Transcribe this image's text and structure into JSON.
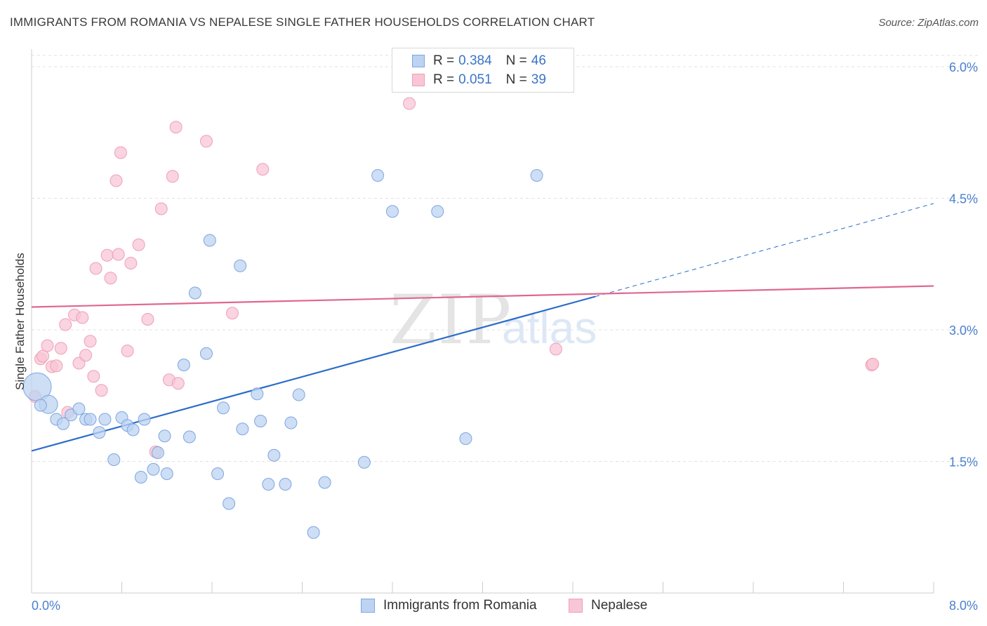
{
  "header": {
    "title": "IMMIGRANTS FROM ROMANIA VS NEPALESE SINGLE FATHER HOUSEHOLDS CORRELATION CHART",
    "source": "Source: ZipAtlas.com"
  },
  "legend_top": {
    "rows": [
      {
        "r_label": "R =",
        "r_value": "0.384",
        "n_label": "N =",
        "n_value": "46"
      },
      {
        "r_label": "R =",
        "r_value": "0.051",
        "n_label": "N =",
        "n_value": "39"
      }
    ]
  },
  "watermark": {
    "zip": "ZIP",
    "atlas": "atlas"
  },
  "bottom_legend": [
    "Immigrants from Romania",
    "Nepalese"
  ],
  "colors": {
    "romania_fill": "#bcd3f2",
    "romania_stroke": "#7ea6e0",
    "romania_line": "#2b6cc9",
    "nepalese_fill": "#f8c6d5",
    "nepalese_stroke": "#eea0b8",
    "nepalese_line": "#e0678f",
    "tick_text": "#4a7fd0",
    "grid": "#e2e2e2"
  },
  "chart_data": {
    "type": "scatter",
    "title": "IMMIGRANTS FROM ROMANIA VS NEPALESE SINGLE FATHER HOUSEHOLDS CORRELATION CHART",
    "xlabel": "",
    "ylabel": "Single Father Households",
    "xlim": [
      0,
      8
    ],
    "ylim": [
      0,
      6.2
    ],
    "x_tick_labels": [
      "0.0%",
      "8.0%"
    ],
    "y_ticks": [
      1.5,
      3.0,
      4.5,
      6.0
    ],
    "y_tick_labels": [
      "1.5%",
      "3.0%",
      "4.5%",
      "6.0%"
    ],
    "grid": "horizontal dashed",
    "legend_position": "top-center",
    "series": [
      {
        "name": "Immigrants from Romania",
        "r": 0.384,
        "n": 46,
        "trend": {
          "x0": 0.0,
          "y0": 1.62,
          "x1": 5.0,
          "y1": 3.38,
          "dashed_to": {
            "x": 8.0,
            "y": 4.44
          }
        },
        "points": [
          {
            "x": 0.05,
            "y": 2.35,
            "s": 3
          },
          {
            "x": 0.15,
            "y": 2.15,
            "s": 2
          },
          {
            "x": 0.22,
            "y": 1.98,
            "s": 1
          },
          {
            "x": 0.28,
            "y": 1.93,
            "s": 1
          },
          {
            "x": 0.35,
            "y": 2.03,
            "s": 1
          },
          {
            "x": 0.42,
            "y": 2.1,
            "s": 1
          },
          {
            "x": 0.48,
            "y": 1.98,
            "s": 1
          },
          {
            "x": 0.52,
            "y": 1.98,
            "s": 1
          },
          {
            "x": 0.6,
            "y": 1.83,
            "s": 1
          },
          {
            "x": 0.65,
            "y": 1.98,
            "s": 1
          },
          {
            "x": 0.73,
            "y": 1.52,
            "s": 1
          },
          {
            "x": 0.8,
            "y": 2.0,
            "s": 1
          },
          {
            "x": 0.85,
            "y": 1.91,
            "s": 1
          },
          {
            "x": 0.9,
            "y": 1.86,
            "s": 1
          },
          {
            "x": 0.97,
            "y": 1.32,
            "s": 1
          },
          {
            "x": 1.0,
            "y": 1.98,
            "s": 1
          },
          {
            "x": 1.08,
            "y": 1.41,
            "s": 1
          },
          {
            "x": 1.12,
            "y": 1.6,
            "s": 1
          },
          {
            "x": 1.18,
            "y": 1.79,
            "s": 1
          },
          {
            "x": 1.2,
            "y": 1.36,
            "s": 1
          },
          {
            "x": 1.35,
            "y": 2.6,
            "s": 1
          },
          {
            "x": 1.4,
            "y": 1.78,
            "s": 1
          },
          {
            "x": 1.45,
            "y": 3.42,
            "s": 1
          },
          {
            "x": 1.55,
            "y": 2.73,
            "s": 1
          },
          {
            "x": 1.58,
            "y": 4.02,
            "s": 1
          },
          {
            "x": 1.65,
            "y": 1.36,
            "s": 1
          },
          {
            "x": 1.7,
            "y": 2.11,
            "s": 1
          },
          {
            "x": 1.75,
            "y": 1.02,
            "s": 1
          },
          {
            "x": 1.85,
            "y": 3.73,
            "s": 1
          },
          {
            "x": 1.87,
            "y": 1.87,
            "s": 1
          },
          {
            "x": 2.0,
            "y": 2.27,
            "s": 1
          },
          {
            "x": 2.03,
            "y": 1.96,
            "s": 1
          },
          {
            "x": 2.1,
            "y": 1.24,
            "s": 1
          },
          {
            "x": 2.15,
            "y": 1.57,
            "s": 1
          },
          {
            "x": 2.25,
            "y": 1.24,
            "s": 1
          },
          {
            "x": 2.3,
            "y": 1.94,
            "s": 1
          },
          {
            "x": 2.37,
            "y": 2.26,
            "s": 1
          },
          {
            "x": 2.5,
            "y": 0.69,
            "s": 1
          },
          {
            "x": 2.6,
            "y": 1.26,
            "s": 1
          },
          {
            "x": 2.95,
            "y": 1.49,
            "s": 1
          },
          {
            "x": 3.07,
            "y": 4.76,
            "s": 1
          },
          {
            "x": 3.2,
            "y": 4.35,
            "s": 1
          },
          {
            "x": 3.6,
            "y": 4.35,
            "s": 1
          },
          {
            "x": 3.85,
            "y": 1.76,
            "s": 1
          },
          {
            "x": 4.48,
            "y": 4.76,
            "s": 1
          },
          {
            "x": 0.08,
            "y": 2.14,
            "s": 1
          }
        ]
      },
      {
        "name": "Nepalese",
        "r": 0.051,
        "n": 39,
        "trend": {
          "x0": 0.0,
          "y0": 3.26,
          "x1": 8.0,
          "y1": 3.5
        },
        "points": [
          {
            "x": 0.03,
            "y": 2.24,
            "s": 1
          },
          {
            "x": 0.08,
            "y": 2.67,
            "s": 1
          },
          {
            "x": 0.1,
            "y": 2.7,
            "s": 1
          },
          {
            "x": 0.14,
            "y": 2.82,
            "s": 1
          },
          {
            "x": 0.18,
            "y": 2.58,
            "s": 1
          },
          {
            "x": 0.22,
            "y": 2.59,
            "s": 1
          },
          {
            "x": 0.26,
            "y": 2.79,
            "s": 1
          },
          {
            "x": 0.3,
            "y": 3.06,
            "s": 1
          },
          {
            "x": 0.32,
            "y": 2.06,
            "s": 1
          },
          {
            "x": 0.38,
            "y": 3.17,
            "s": 1
          },
          {
            "x": 0.42,
            "y": 2.62,
            "s": 1
          },
          {
            "x": 0.45,
            "y": 3.14,
            "s": 1
          },
          {
            "x": 0.48,
            "y": 2.71,
            "s": 1
          },
          {
            "x": 0.52,
            "y": 2.87,
            "s": 1
          },
          {
            "x": 0.55,
            "y": 2.47,
            "s": 1
          },
          {
            "x": 0.57,
            "y": 3.7,
            "s": 1
          },
          {
            "x": 0.62,
            "y": 2.31,
            "s": 1
          },
          {
            "x": 0.67,
            "y": 3.85,
            "s": 1
          },
          {
            "x": 0.7,
            "y": 3.59,
            "s": 1
          },
          {
            "x": 0.75,
            "y": 4.7,
            "s": 1
          },
          {
            "x": 0.77,
            "y": 3.86,
            "s": 1
          },
          {
            "x": 0.79,
            "y": 5.02,
            "s": 1
          },
          {
            "x": 0.85,
            "y": 2.76,
            "s": 1
          },
          {
            "x": 0.88,
            "y": 3.76,
            "s": 1
          },
          {
            "x": 0.95,
            "y": 3.97,
            "s": 1
          },
          {
            "x": 1.03,
            "y": 3.12,
            "s": 1
          },
          {
            "x": 1.1,
            "y": 1.61,
            "s": 1
          },
          {
            "x": 1.15,
            "y": 4.38,
            "s": 1
          },
          {
            "x": 1.22,
            "y": 2.43,
            "s": 1
          },
          {
            "x": 1.25,
            "y": 4.75,
            "s": 1
          },
          {
            "x": 1.28,
            "y": 5.31,
            "s": 1
          },
          {
            "x": 1.3,
            "y": 2.39,
            "s": 1
          },
          {
            "x": 1.55,
            "y": 5.15,
            "s": 1
          },
          {
            "x": 1.78,
            "y": 3.19,
            "s": 1
          },
          {
            "x": 2.05,
            "y": 4.83,
            "s": 1
          },
          {
            "x": 3.35,
            "y": 5.58,
            "s": 1
          },
          {
            "x": 4.65,
            "y": 2.78,
            "s": 1
          },
          {
            "x": 7.45,
            "y": 2.6,
            "s": 1
          },
          {
            "x": 7.46,
            "y": 2.61,
            "s": 1
          }
        ]
      }
    ]
  }
}
